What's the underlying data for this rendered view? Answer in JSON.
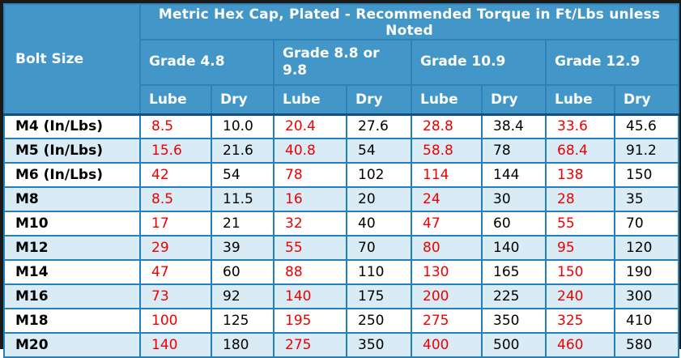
{
  "table": {
    "title": "Metric Hex Cap, Plated - Recommended Torque in Ft/Lbs unless Noted",
    "corner_header": "Bolt Size",
    "grade_groups": [
      "Grade 4.8",
      "Grade 8.8 or\n9.8",
      "Grade 10.9",
      "Grade 12.9"
    ],
    "sub_headers": [
      "Lube",
      "Dry"
    ],
    "rows": [
      {
        "bolt": "M4 (In/Lbs)",
        "values": [
          "8.5",
          "10.0",
          "20.4",
          "27.6",
          "28.8",
          "38.4",
          "33.6",
          "45.6"
        ]
      },
      {
        "bolt": "M5 (In/Lbs)",
        "values": [
          "15.6",
          "21.6",
          "40.8",
          "54",
          "58.8",
          "78",
          "68.4",
          "91.2"
        ]
      },
      {
        "bolt": "M6 (In/Lbs)",
        "values": [
          "42",
          "54",
          "78",
          "102",
          "114",
          "144",
          "138",
          "150"
        ]
      },
      {
        "bolt": "M8",
        "values": [
          "8.5",
          "11.5",
          "16",
          "20",
          "24",
          "30",
          "28",
          "35"
        ]
      },
      {
        "bolt": "M10",
        "values": [
          "17",
          "21",
          "32",
          "40",
          "47",
          "60",
          "55",
          "70"
        ]
      },
      {
        "bolt": "M12",
        "values": [
          "29",
          "39",
          "55",
          "70",
          "80",
          "140",
          "95",
          "120"
        ]
      },
      {
        "bolt": "M14",
        "values": [
          "47",
          "60",
          "88",
          "110",
          "130",
          "165",
          "150",
          "190"
        ]
      },
      {
        "bolt": "M16",
        "values": [
          "73",
          "92",
          "140",
          "175",
          "200",
          "225",
          "240",
          "300"
        ]
      },
      {
        "bolt": "M18",
        "values": [
          "100",
          "125",
          "195",
          "250",
          "275",
          "350",
          "325",
          "410"
        ]
      },
      {
        "bolt": "M20",
        "values": [
          "140",
          "180",
          "275",
          "350",
          "400",
          "500",
          "460",
          "580"
        ]
      }
    ]
  },
  "colors": {
    "outer_border": "#1a1a1a",
    "header_background": "#4296c8",
    "header_divider": "#2e82b6",
    "header_text": "#ffffff",
    "header_bottom_rule": "#11507e",
    "grid_line": "#2380bd",
    "row_alt_background": "#d9ecf5",
    "row_background": "#ffffff",
    "lube_value_text": "#ee0000",
    "dry_value_text": "#000000"
  }
}
